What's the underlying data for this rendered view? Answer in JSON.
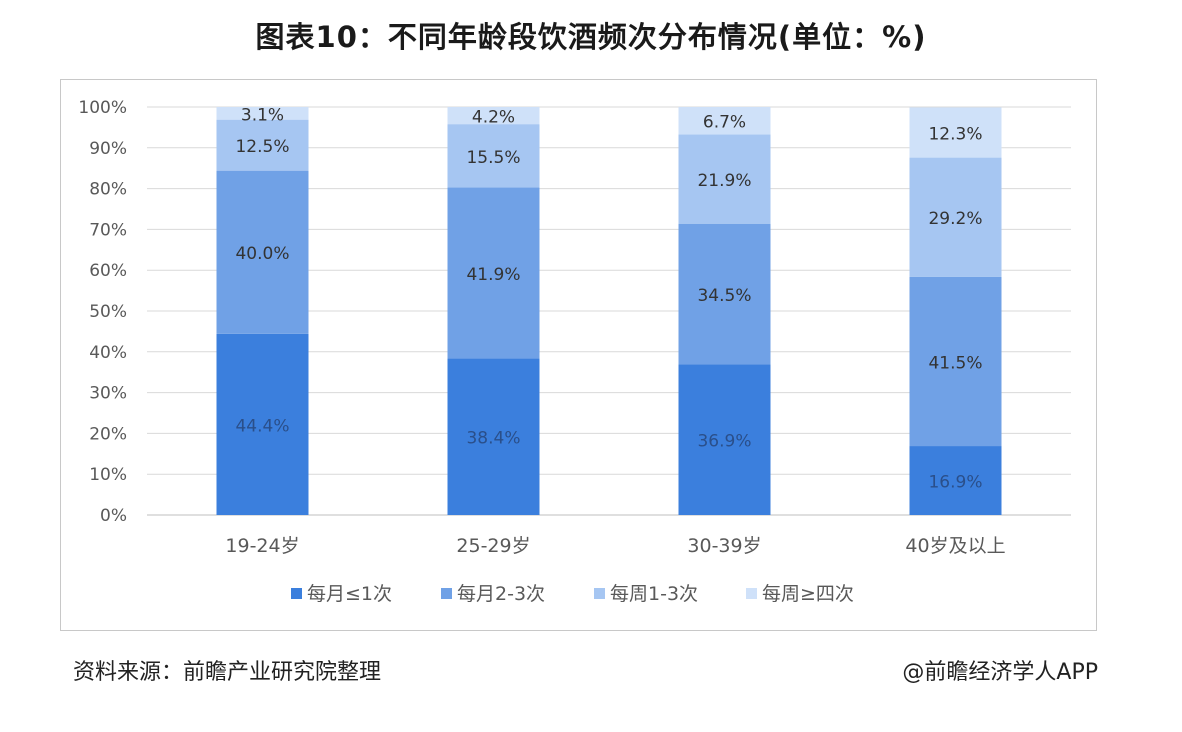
{
  "page": {
    "title": "图表10：不同年龄段饮酒频次分布情况(单位：%)",
    "source": "资料来源：前瞻产业研究院整理",
    "brand": "@前瞻经济学人APP"
  },
  "chart_data": {
    "type": "bar",
    "stacked": true,
    "title": "图表10：不同年龄段饮酒频次分布情况(单位：%)",
    "categories": [
      "19-24岁",
      "25-29岁",
      "30-39岁",
      "40岁及以上"
    ],
    "series": [
      {
        "name": "每月≤1次",
        "values": [
          44.4,
          38.4,
          36.9,
          16.9
        ],
        "color": "#3b7fdd",
        "label_color": "#2a4f8a"
      },
      {
        "name": "每月2-3次",
        "values": [
          40.0,
          41.9,
          34.5,
          41.5
        ],
        "color": "#70a1e6",
        "label_color": "#333333"
      },
      {
        "name": "每周1-3次",
        "values": [
          12.5,
          15.5,
          21.9,
          29.2
        ],
        "color": "#a6c6f2",
        "label_color": "#333333"
      },
      {
        "name": "每周≥四次",
        "values": [
          3.1,
          4.2,
          6.7,
          12.3
        ],
        "color": "#cfe1f9",
        "label_color": "#333333"
      }
    ],
    "value_labels": [
      [
        "44.4%",
        "38.4%",
        "36.9%",
        "16.9%"
      ],
      [
        "40.0%",
        "41.9%",
        "34.5%",
        "41.5%"
      ],
      [
        "12.5%",
        "15.5%",
        "21.9%",
        "29.2%"
      ],
      [
        "3.1%",
        "4.2%",
        "6.7%",
        "12.3%"
      ]
    ],
    "yticks": [
      "0%",
      "10%",
      "20%",
      "30%",
      "40%",
      "50%",
      "60%",
      "70%",
      "80%",
      "90%",
      "100%"
    ],
    "ylim": [
      0,
      100
    ],
    "grid": true,
    "legend_position": "bottom",
    "gridline_color": "#d9d9d9",
    "axis_color": "#bfbfbf"
  }
}
